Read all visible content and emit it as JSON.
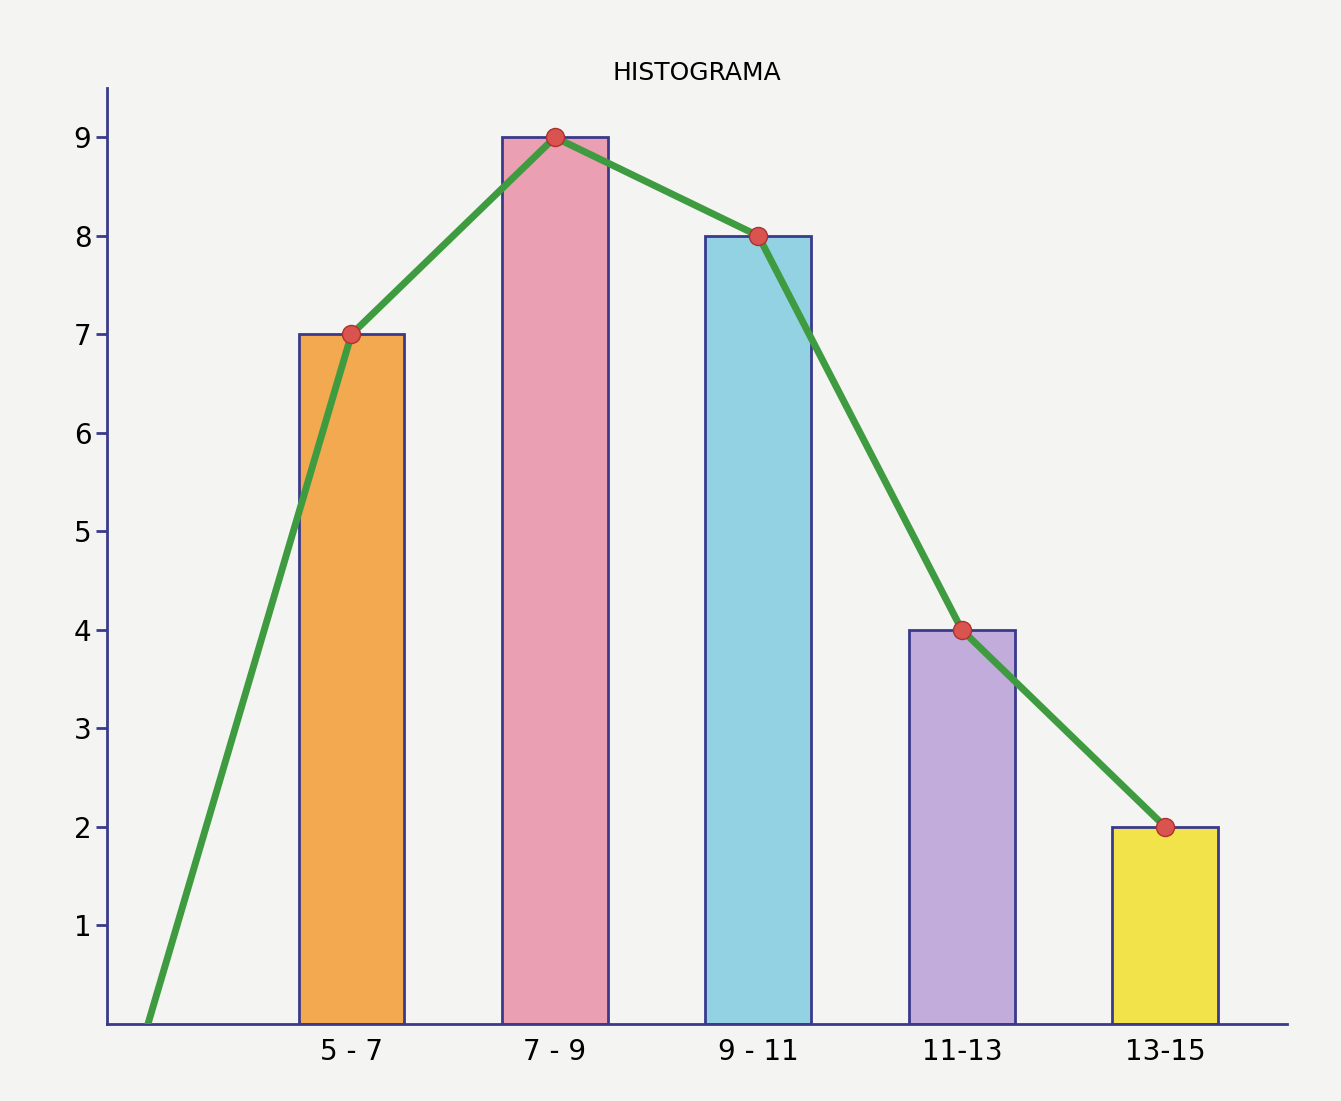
{
  "chart_data": {
    "type": "bar",
    "title": "HISTOGRAMA",
    "categories": [
      null,
      "5 - 7",
      "7 - 9",
      "9 - 11",
      "11-13",
      "13-15"
    ],
    "series": [
      {
        "type": "bar",
        "values": [
          null,
          7,
          9,
          8,
          4,
          2
        ],
        "colors": [
          "#f2a950",
          "#f2a950",
          "#eb9fb2",
          "#93d2e2",
          "#c2acdc",
          "#f3e34a"
        ]
      },
      {
        "type": "line",
        "color": "#3f9b3f",
        "marker": "o",
        "line_style": "solid",
        "values": [
          0,
          7,
          9,
          8,
          4,
          2
        ]
      }
    ],
    "ylim": [
      0,
      9.5
    ],
    "yticks": [
      1,
      2,
      3,
      4,
      5,
      6,
      7,
      8,
      9
    ]
  }
}
